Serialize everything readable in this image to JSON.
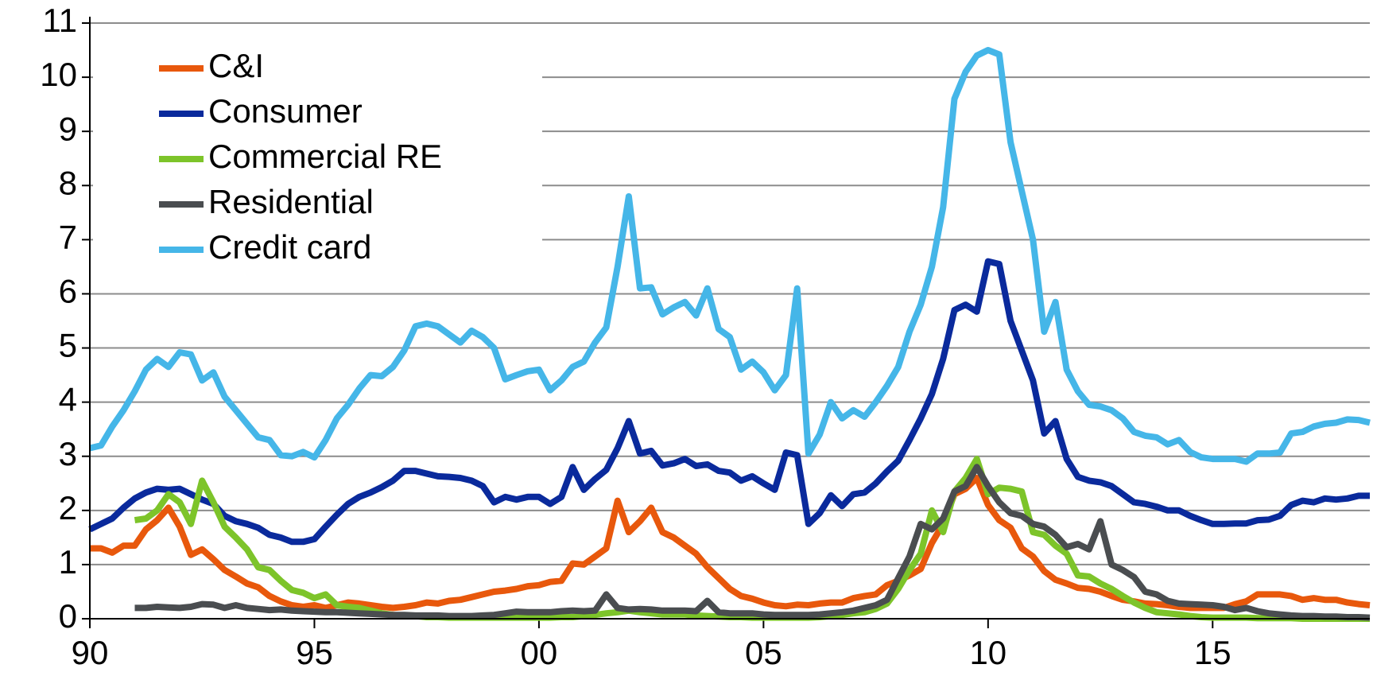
{
  "chart_data": {
    "type": "line",
    "x": [
      1990,
      1990.25,
      1990.5,
      1990.75,
      1991,
      1991.25,
      1991.5,
      1991.75,
      1992,
      1992.25,
      1992.5,
      1992.75,
      1993,
      1993.25,
      1993.5,
      1993.75,
      1994,
      1994.25,
      1994.5,
      1994.75,
      1995,
      1995.25,
      1995.5,
      1995.75,
      1996,
      1996.25,
      1996.5,
      1996.75,
      1997,
      1997.25,
      1997.5,
      1997.75,
      1998,
      1998.25,
      1998.5,
      1998.75,
      1999,
      1999.25,
      1999.5,
      1999.75,
      2000,
      2000.25,
      2000.5,
      2000.75,
      2001,
      2001.25,
      2001.5,
      2001.75,
      2002,
      2002.25,
      2002.5,
      2002.75,
      2003,
      2003.25,
      2003.5,
      2003.75,
      2004,
      2004.25,
      2004.5,
      2004.75,
      2005,
      2005.25,
      2005.5,
      2005.75,
      2006,
      2006.25,
      2006.5,
      2006.75,
      2007,
      2007.25,
      2007.5,
      2007.75,
      2008,
      2008.25,
      2008.5,
      2008.75,
      2009,
      2009.25,
      2009.5,
      2009.75,
      2010,
      2010.25,
      2010.5,
      2010.75,
      2011,
      2011.25,
      2011.5,
      2011.75,
      2012,
      2012.25,
      2012.5,
      2012.75,
      2013,
      2013.25,
      2013.5,
      2013.75,
      2014,
      2014.25,
      2014.5,
      2014.75,
      2015,
      2015.25,
      2015.5,
      2015.75,
      2016,
      2016.25,
      2016.5,
      2016.75,
      2017,
      2017.25,
      2017.5,
      2017.75,
      2018,
      2018.25,
      2018.5
    ],
    "series": [
      {
        "name": "C&I",
        "color": "#e8580c",
        "values": [
          1.3,
          1.3,
          1.22,
          1.35,
          1.35,
          1.65,
          1.82,
          2.05,
          1.7,
          1.18,
          1.28,
          1.1,
          0.9,
          0.78,
          0.65,
          0.58,
          0.42,
          0.32,
          0.25,
          0.22,
          0.25,
          0.2,
          0.25,
          0.3,
          0.28,
          0.25,
          0.22,
          0.2,
          0.22,
          0.25,
          0.3,
          0.28,
          0.33,
          0.35,
          0.4,
          0.45,
          0.5,
          0.52,
          0.55,
          0.6,
          0.62,
          0.68,
          0.7,
          1.02,
          1.0,
          1.15,
          1.3,
          2.18,
          1.6,
          1.8,
          2.05,
          1.6,
          1.5,
          1.35,
          1.2,
          0.95,
          0.75,
          0.55,
          0.42,
          0.37,
          0.3,
          0.25,
          0.23,
          0.26,
          0.25,
          0.28,
          0.3,
          0.3,
          0.38,
          0.42,
          0.45,
          0.62,
          0.7,
          0.8,
          0.92,
          1.4,
          1.75,
          2.3,
          2.4,
          2.6,
          2.1,
          1.82,
          1.68,
          1.3,
          1.15,
          0.88,
          0.72,
          0.65,
          0.57,
          0.55,
          0.5,
          0.42,
          0.35,
          0.32,
          0.28,
          0.27,
          0.25,
          0.22,
          0.2,
          0.2,
          0.2,
          0.2,
          0.27,
          0.32,
          0.45,
          0.45,
          0.45,
          0.42,
          0.35,
          0.38,
          0.35,
          0.35,
          0.3,
          0.27,
          0.25
        ]
      },
      {
        "name": "Consumer",
        "color": "#0a2a9c",
        "values": [
          1.65,
          1.75,
          1.85,
          2.05,
          2.22,
          2.33,
          2.4,
          2.38,
          2.4,
          2.3,
          2.2,
          2.12,
          1.9,
          1.8,
          1.75,
          1.68,
          1.55,
          1.5,
          1.42,
          1.42,
          1.47,
          1.7,
          1.92,
          2.12,
          2.25,
          2.33,
          2.43,
          2.55,
          2.73,
          2.73,
          2.68,
          2.63,
          2.62,
          2.6,
          2.55,
          2.45,
          2.15,
          2.25,
          2.2,
          2.25,
          2.25,
          2.12,
          2.25,
          2.8,
          2.38,
          2.58,
          2.75,
          3.15,
          3.65,
          3.05,
          3.1,
          2.83,
          2.87,
          2.95,
          2.82,
          2.85,
          2.73,
          2.7,
          2.55,
          2.63,
          2.5,
          2.38,
          3.07,
          3.02,
          1.75,
          1.95,
          2.28,
          2.08,
          2.3,
          2.33,
          2.5,
          2.72,
          2.92,
          3.3,
          3.7,
          4.15,
          4.8,
          5.7,
          5.8,
          5.67,
          6.6,
          6.55,
          5.5,
          4.95,
          4.4,
          3.42,
          3.65,
          2.95,
          2.62,
          2.55,
          2.52,
          2.45,
          2.3,
          2.15,
          2.12,
          2.07,
          2.0,
          2.0,
          1.9,
          1.82,
          1.75,
          1.75,
          1.76,
          1.76,
          1.82,
          1.83,
          1.9,
          2.1,
          2.18,
          2.15,
          2.22,
          2.2,
          2.22,
          2.27,
          2.27
        ]
      },
      {
        "name": "Commercial RE",
        "color": "#7dc42a",
        "values": [
          null,
          null,
          null,
          null,
          1.82,
          1.85,
          2.0,
          2.3,
          2.15,
          1.75,
          2.55,
          2.15,
          1.7,
          1.5,
          1.28,
          0.95,
          0.9,
          0.7,
          0.53,
          0.48,
          0.38,
          0.45,
          0.25,
          0.22,
          0.2,
          0.15,
          0.1,
          0.07,
          0.05,
          0.05,
          0.03,
          0.03,
          0.02,
          0.02,
          0.02,
          0.02,
          0.02,
          0.02,
          0.02,
          0.02,
          0.02,
          0.02,
          0.03,
          0.03,
          0.05,
          0.07,
          0.1,
          0.12,
          0.15,
          0.12,
          0.1,
          0.08,
          0.08,
          0.08,
          0.06,
          0.05,
          0.04,
          0.03,
          0.03,
          0.02,
          0.02,
          0.02,
          0.02,
          0.02,
          0.02,
          0.03,
          0.05,
          0.07,
          0.1,
          0.12,
          0.18,
          0.28,
          0.55,
          0.9,
          1.2,
          2.0,
          1.6,
          2.35,
          2.6,
          2.95,
          2.3,
          2.42,
          2.4,
          2.35,
          1.6,
          1.55,
          1.35,
          1.2,
          0.8,
          0.78,
          0.65,
          0.55,
          0.42,
          0.3,
          0.2,
          0.12,
          0.1,
          0.08,
          0.05,
          0.03,
          0.02,
          0.02,
          0.02,
          0.02,
          0.01,
          0.01,
          0.01,
          0.01,
          0,
          0,
          0,
          0,
          0,
          0,
          0
        ]
      },
      {
        "name": "Residential",
        "color": "#4a4d50",
        "values": [
          null,
          null,
          null,
          null,
          0.2,
          0.2,
          0.22,
          0.21,
          0.2,
          0.22,
          0.27,
          0.26,
          0.2,
          0.25,
          0.2,
          0.18,
          0.16,
          0.17,
          0.15,
          0.14,
          0.13,
          0.12,
          0.12,
          0.11,
          0.1,
          0.09,
          0.08,
          0.07,
          0.07,
          0.06,
          0.06,
          0.06,
          0.05,
          0.05,
          0.05,
          0.06,
          0.07,
          0.1,
          0.13,
          0.12,
          0.12,
          0.12,
          0.14,
          0.15,
          0.14,
          0.15,
          0.45,
          0.2,
          0.17,
          0.18,
          0.17,
          0.15,
          0.15,
          0.15,
          0.14,
          0.33,
          0.12,
          0.1,
          0.1,
          0.1,
          0.08,
          0.07,
          0.07,
          0.07,
          0.07,
          0.08,
          0.1,
          0.12,
          0.15,
          0.2,
          0.25,
          0.35,
          0.75,
          1.15,
          1.75,
          1.65,
          1.85,
          2.35,
          2.45,
          2.8,
          2.45,
          2.15,
          1.95,
          1.9,
          1.75,
          1.7,
          1.55,
          1.32,
          1.38,
          1.28,
          1.8,
          1.0,
          0.9,
          0.77,
          0.5,
          0.45,
          0.33,
          0.28,
          0.27,
          0.26,
          0.25,
          0.22,
          0.16,
          0.2,
          0.14,
          0.1,
          0.08,
          0.06,
          0.05,
          0.05,
          0.04,
          0.04,
          0.03,
          0.03,
          0.02
        ]
      },
      {
        "name": "Credit card",
        "color": "#45b6e8",
        "values": [
          3.15,
          3.2,
          3.55,
          3.85,
          4.2,
          4.6,
          4.8,
          4.65,
          4.92,
          4.88,
          4.4,
          4.55,
          4.1,
          3.85,
          3.6,
          3.35,
          3.3,
          3.02,
          3.0,
          3.08,
          2.98,
          3.3,
          3.7,
          3.95,
          4.25,
          4.5,
          4.48,
          4.65,
          4.95,
          5.4,
          5.45,
          5.4,
          5.25,
          5.1,
          5.32,
          5.2,
          5.0,
          4.42,
          4.5,
          4.57,
          4.6,
          4.22,
          4.4,
          4.65,
          4.75,
          5.1,
          5.38,
          6.5,
          7.8,
          6.1,
          6.12,
          5.62,
          5.75,
          5.85,
          5.6,
          6.1,
          5.35,
          5.2,
          4.6,
          4.75,
          4.55,
          4.22,
          4.5,
          6.1,
          3.05,
          3.4,
          4.0,
          3.7,
          3.85,
          3.73,
          4.0,
          4.3,
          4.65,
          5.3,
          5.8,
          6.5,
          7.6,
          9.6,
          10.1,
          10.4,
          10.5,
          10.42,
          8.8,
          7.9,
          7.0,
          5.3,
          5.85,
          4.6,
          4.2,
          3.95,
          3.92,
          3.85,
          3.7,
          3.45,
          3.38,
          3.35,
          3.22,
          3.3,
          3.08,
          2.98,
          2.95,
          2.95,
          2.95,
          2.9,
          3.05,
          3.05,
          3.07,
          3.42,
          3.45,
          3.55,
          3.6,
          3.62,
          3.68,
          3.67,
          3.62
        ]
      }
    ],
    "xlim": [
      1990,
      2018.5
    ],
    "xticks": [
      {
        "value": 1990,
        "label": "90"
      },
      {
        "value": 1995,
        "label": "95"
      },
      {
        "value": 2000,
        "label": "00"
      },
      {
        "value": 2005,
        "label": "05"
      },
      {
        "value": 2010,
        "label": "10"
      },
      {
        "value": 2015,
        "label": "15"
      }
    ],
    "ylim": [
      0,
      11
    ],
    "yticks": [
      0,
      1,
      2,
      3,
      4,
      5,
      6,
      7,
      8,
      9,
      10,
      11
    ],
    "grid": true,
    "legend": "upper-left"
  }
}
